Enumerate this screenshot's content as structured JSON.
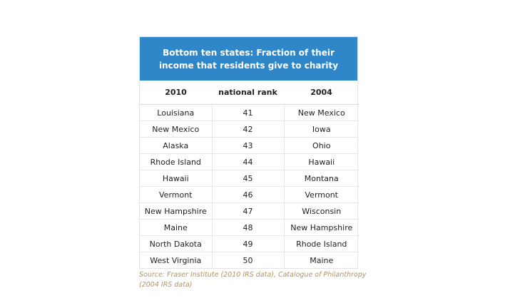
{
  "chart_data": {
    "type": "table",
    "title": "Bottom ten states: Fraction of their income that residents give to charity",
    "columns": [
      "2010",
      "national rank",
      "2004"
    ],
    "rows": [
      [
        "Louisiana",
        "41",
        "New Mexico"
      ],
      [
        "New Mexico",
        "42",
        "Iowa"
      ],
      [
        "Alaska",
        "43",
        "Ohio"
      ],
      [
        "Rhode Island",
        "44",
        "Hawaii"
      ],
      [
        "Hawaii",
        "45",
        "Montana"
      ],
      [
        "Vermont",
        "46",
        "Vermont"
      ],
      [
        "New Hampshire",
        "47",
        "Wisconsin"
      ],
      [
        "Maine",
        "48",
        "New Hampshire"
      ],
      [
        "North Dakota",
        "49",
        "Rhode Island"
      ],
      [
        "West Virginia",
        "50",
        "Maine"
      ]
    ],
    "source": "Source: Fraser Institute (2010 IRS data), Catalogue of Philanthropy (2004 IRS data)"
  },
  "colors": {
    "header": "#2f86c8",
    "source_text": "#b2935d"
  }
}
